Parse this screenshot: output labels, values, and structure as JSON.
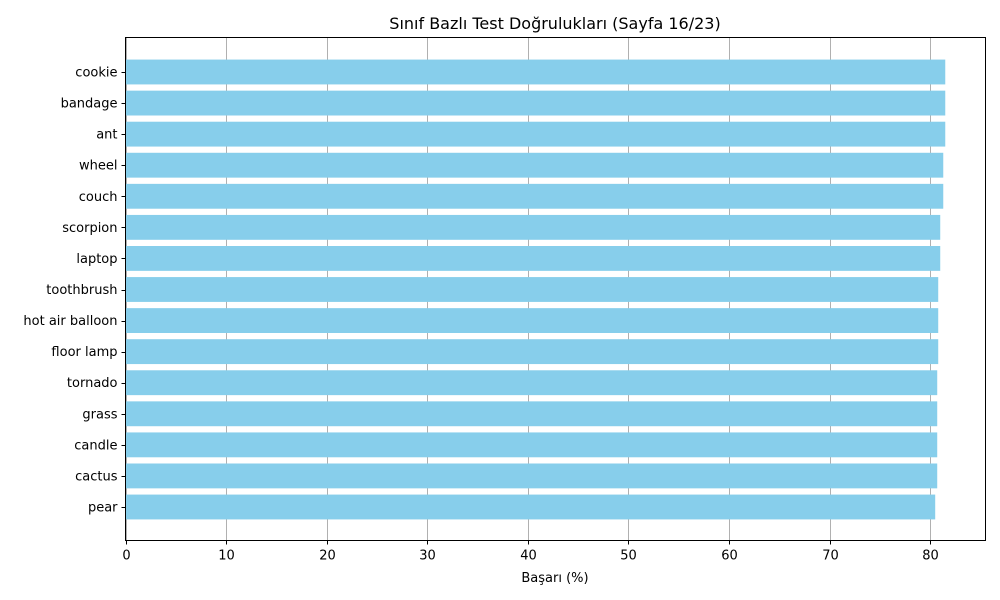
{
  "chart_data": {
    "type": "bar",
    "orientation": "horizontal",
    "title": "Sınıf Bazlı Test Doğrulukları (Sayfa 16/23)",
    "xlabel": "Başarı (%)",
    "ylabel": "",
    "xlim": [
      0,
      85.5
    ],
    "xticks": [
      0,
      10,
      20,
      30,
      40,
      50,
      60,
      70,
      80
    ],
    "categories": [
      "cookie",
      "bandage",
      "ant",
      "wheel",
      "couch",
      "scorpion",
      "laptop",
      "toothbrush",
      "hot air balloon",
      "floor lamp",
      "tornado",
      "grass",
      "candle",
      "cactus",
      "pear"
    ],
    "values": [
      81.5,
      81.5,
      81.5,
      81.3,
      81.3,
      81.0,
      81.0,
      80.8,
      80.8,
      80.8,
      80.7,
      80.7,
      80.7,
      80.7,
      80.5
    ],
    "grid": "vertical",
    "bar_color": "#87CEEB",
    "grid_color": "#b0b0b0"
  }
}
